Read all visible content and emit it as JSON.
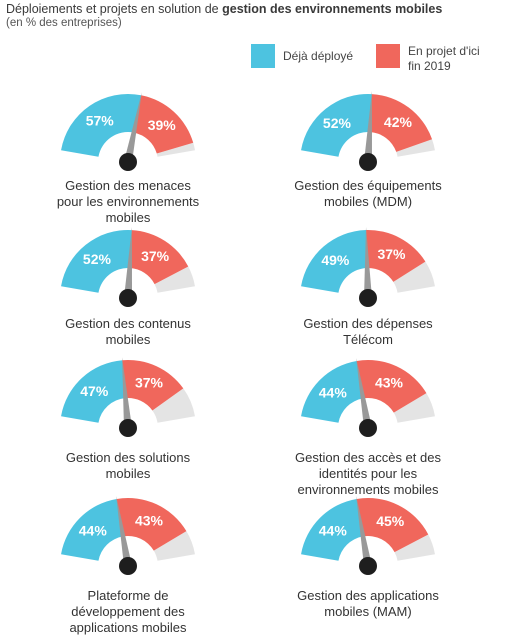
{
  "header": {
    "title_prefix": "Déploiements et projets en solution de ",
    "title_bold": "gestion des environnements mobiles",
    "subtitle": "(en % des entreprises)"
  },
  "legend": {
    "deployed": "Déjà déployé",
    "planned_line1": "En projet d'ici",
    "planned_line2": "fin 2019"
  },
  "colors": {
    "deployed": "#4DC3E0",
    "planned": "#F0675C",
    "remaining": "#E4E4E4",
    "needle": "#999999",
    "hub": "#1e1e1e"
  },
  "chart_data": {
    "type": "gauge",
    "series_names": [
      "Déjà déployé",
      "En projet d'ici fin 2019"
    ],
    "gauges": [
      {
        "caption": [
          "Gestion des menaces",
          "pour les environnements",
          "mobiles"
        ],
        "deployed": 57,
        "planned": 39,
        "deployed_label": "57%",
        "planned_label": "39%"
      },
      {
        "caption": [
          "Gestion des équipements",
          "mobiles (MDM)"
        ],
        "deployed": 52,
        "planned": 42,
        "deployed_label": "52%",
        "planned_label": "42%"
      },
      {
        "caption": [
          "Gestion des contenus",
          "mobiles"
        ],
        "deployed": 52,
        "planned": 37,
        "deployed_label": "52%",
        "planned_label": "37%"
      },
      {
        "caption": [
          "Gestion des dépenses",
          "Télécom"
        ],
        "deployed": 49,
        "planned": 37,
        "deployed_label": "49%",
        "planned_label": "37%"
      },
      {
        "caption": [
          "Gestion des solutions",
          "mobiles"
        ],
        "deployed": 47,
        "planned": 37,
        "deployed_label": "47%",
        "planned_label": "37%"
      },
      {
        "caption": [
          "Gestion des accès et des",
          "identités pour les",
          "environnements mobiles"
        ],
        "deployed": 44,
        "planned": 43,
        "deployed_label": "44%",
        "planned_label": "43%"
      },
      {
        "caption": [
          "Plateforme de",
          "développement des",
          "applications mobiles"
        ],
        "deployed": 44,
        "planned": 43,
        "deployed_label": "44%",
        "planned_label": "43%"
      },
      {
        "caption": [
          "Gestion des applications",
          "mobiles (MAM)"
        ],
        "deployed": 44,
        "planned": 45,
        "deployed_label": "44%",
        "planned_label": "45%"
      }
    ]
  }
}
